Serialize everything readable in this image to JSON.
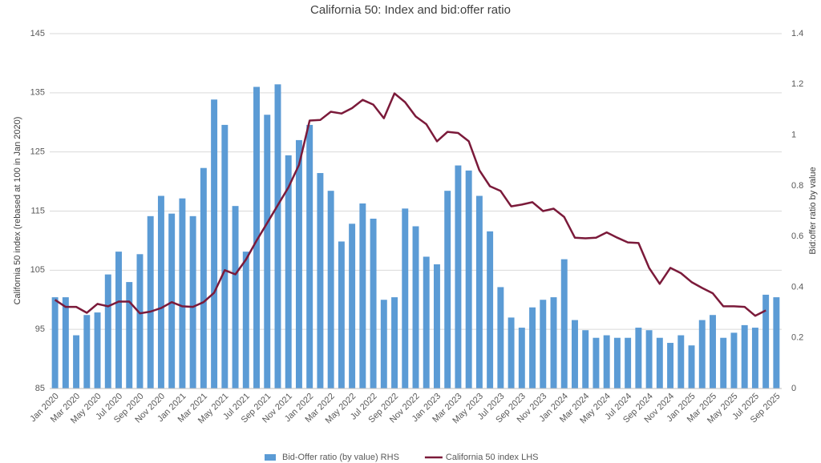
{
  "chart_data": {
    "type": "combo",
    "title": "California 50: Index and bid:offer ratio",
    "y_label": "California 50 index (rebased at 100 in Jan 2020)",
    "y2_label": "Bid:offer ratio by value",
    "categories": [
      "Jan 2020",
      null,
      "Mar 2020",
      null,
      "May 2020",
      null,
      "Jul 2020",
      null,
      "Sep 2020",
      null,
      "Nov 2020",
      null,
      "Jan 2021",
      null,
      "Mar 2021",
      null,
      "May 2021",
      null,
      "Jul 2021",
      null,
      "Sep 2021",
      null,
      "Nov 2021",
      null,
      "Jan 2022",
      null,
      "Mar 2022",
      null,
      "May 2022",
      null,
      "Jul 2022",
      null,
      "Sep 2022",
      null,
      "Nov 2022",
      null,
      "Jan 2023",
      null,
      "Mar 2023",
      null,
      "May 2023",
      null,
      "Jul 2023",
      null,
      "Sep 2023",
      null,
      "Nov 2023",
      null,
      "Jan 2024",
      null,
      "Mar 2024",
      null,
      "May 2024",
      null,
      "Jul 2024",
      null,
      "Sep 2024",
      null,
      "Nov 2024",
      null,
      "Jan 2025",
      null,
      "Mar 2025",
      null,
      "May 2025",
      null,
      "Jul 2025",
      null,
      "Sep 2025"
    ],
    "series": [
      {
        "name": "Bid-Offer ratio (by value) RHS",
        "type": "bar",
        "axis": "y2",
        "color": "#5b9bd5",
        "values": [
          0.36,
          0.36,
          0.21,
          0.29,
          0.3,
          0.45,
          0.54,
          0.42,
          0.53,
          0.68,
          0.76,
          0.69,
          0.75,
          0.68,
          0.87,
          1.14,
          1.04,
          0.72,
          0.54,
          1.19,
          1.08,
          1.2,
          0.92,
          0.98,
          1.04,
          0.85,
          0.78,
          0.58,
          0.65,
          0.73,
          0.67,
          0.35,
          0.36,
          0.71,
          0.64,
          0.52,
          0.49,
          0.78,
          0.88,
          0.86,
          0.76,
          0.62,
          0.4,
          0.28,
          0.24,
          0.32,
          0.35,
          0.36,
          0.51,
          0.27,
          0.23,
          0.2,
          0.21,
          0.2,
          0.2,
          0.24,
          0.23,
          0.2,
          0.18,
          0.21,
          0.17,
          0.27,
          0.29,
          0.2,
          0.22,
          0.25,
          0.24,
          0.37,
          0.36
        ]
      },
      {
        "name": "California 50 index LHS",
        "type": "line",
        "axis": "y",
        "color": "#7b1a3a",
        "values": [
          100,
          98.8,
          98.8,
          97.8,
          99.3,
          98.9,
          99.7,
          99.7,
          97.7,
          98,
          98.6,
          99.6,
          98.9,
          98.8,
          99.6,
          101.2,
          105,
          104.3,
          106.8,
          110,
          113,
          116,
          119,
          122.8,
          130.3,
          130.4,
          131.8,
          131.5,
          132.4,
          133.8,
          133,
          130.7,
          134.9,
          133.4,
          131,
          129.7,
          126.8,
          128.4,
          128.2,
          126.8,
          121.9,
          119.2,
          118.4,
          115.8,
          116.1,
          116.5,
          115,
          115.4,
          114,
          110.5,
          110.4,
          110.5,
          111.4,
          110.5,
          109.7,
          109.6,
          105.4,
          102.7,
          105.4,
          104.5,
          103,
          102,
          101.1,
          98.9,
          98.9,
          98.8,
          97.3,
          98.2,
          null
        ]
      }
    ],
    "ylim": [
      85,
      145
    ],
    "yticks": [
      85,
      95,
      105,
      115,
      125,
      135,
      145
    ],
    "y2lim": [
      0,
      1.4
    ],
    "y2ticks": [
      0,
      0.2,
      0.4,
      0.6,
      0.8,
      1,
      1.2,
      1.4
    ],
    "grid": true,
    "legend": "bottom"
  }
}
